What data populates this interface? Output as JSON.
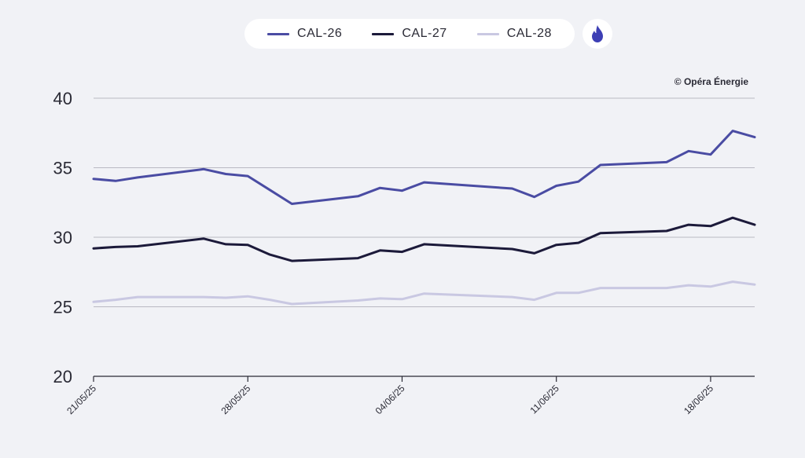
{
  "legend": {
    "items": [
      {
        "label": "CAL-26",
        "color": "#4a4ca3"
      },
      {
        "label": "CAL-27",
        "color": "#1c1a3a"
      },
      {
        "label": "CAL-28",
        "color": "#c9c8e2"
      }
    ],
    "button_icon": "flame-icon",
    "button_color": "#3d3fb5"
  },
  "credit": "© Opéra Énergie",
  "chart_data": {
    "type": "line",
    "title": "",
    "xlabel": "",
    "ylabel": "",
    "ylim": [
      20,
      40
    ],
    "yticks": [
      20,
      25,
      30,
      35,
      40
    ],
    "xlim": [
      "2025-05-21",
      "2025-06-20"
    ],
    "xticks": [
      "21/05/25",
      "28/05/25",
      "04/06/25",
      "11/06/25",
      "18/06/25"
    ],
    "grid": true,
    "x": [
      "2025-05-21",
      "2025-05-22",
      "2025-05-23",
      "2025-05-26",
      "2025-05-27",
      "2025-05-28",
      "2025-05-29",
      "2025-05-30",
      "2025-06-02",
      "2025-06-03",
      "2025-06-04",
      "2025-06-05",
      "2025-06-09",
      "2025-06-10",
      "2025-06-11",
      "2025-06-12",
      "2025-06-13",
      "2025-06-16",
      "2025-06-17",
      "2025-06-18",
      "2025-06-19",
      "2025-06-20"
    ],
    "series": [
      {
        "name": "CAL-26",
        "color": "#4a4ca3",
        "values": [
          34.2,
          34.05,
          34.3,
          34.9,
          34.55,
          34.4,
          33.4,
          32.4,
          32.95,
          33.55,
          33.35,
          33.95,
          33.5,
          32.9,
          33.7,
          34.0,
          35.2,
          35.4,
          36.2,
          35.95,
          37.65,
          37.2
        ]
      },
      {
        "name": "CAL-27",
        "color": "#1c1a3a",
        "values": [
          29.2,
          29.3,
          29.35,
          29.9,
          29.5,
          29.45,
          28.75,
          28.3,
          28.5,
          29.05,
          28.95,
          29.5,
          29.15,
          28.85,
          29.45,
          29.6,
          30.3,
          30.45,
          30.9,
          30.8,
          31.4,
          30.9
        ]
      },
      {
        "name": "CAL-28",
        "color": "#c9c8e2",
        "values": [
          25.35,
          25.5,
          25.7,
          25.7,
          25.65,
          25.75,
          25.5,
          25.2,
          25.45,
          25.6,
          25.55,
          25.95,
          25.7,
          25.5,
          26.0,
          26.0,
          26.35,
          26.35,
          26.55,
          26.45,
          26.8,
          26.6
        ]
      }
    ]
  }
}
